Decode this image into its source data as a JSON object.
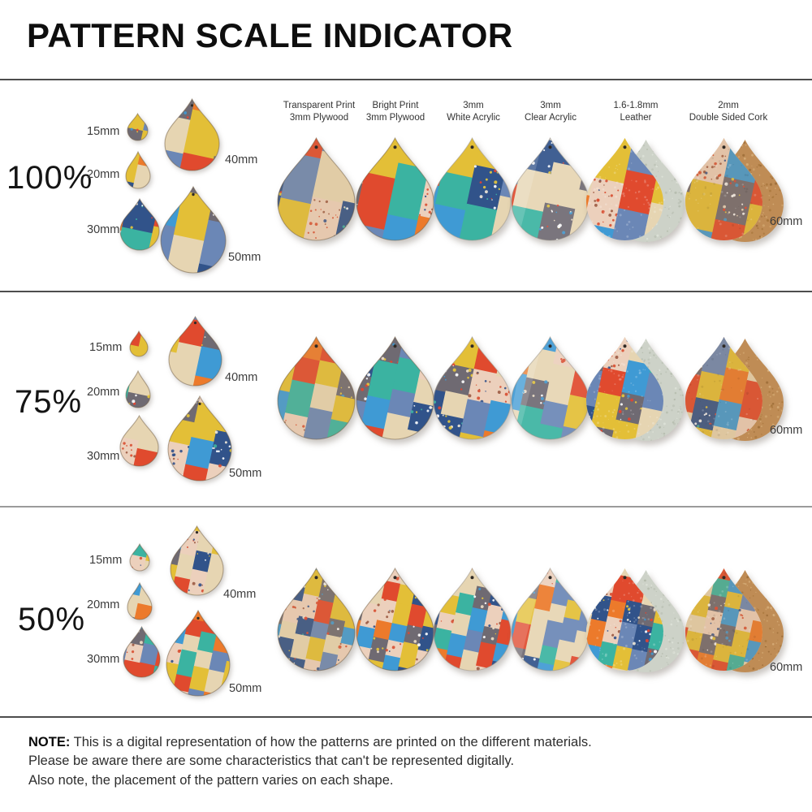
{
  "title": "PATTERN SCALE INDICATOR",
  "columns": [
    {
      "key": "plywood-transparent",
      "line1": "Transparent Print",
      "line2": "3mm Plywood"
    },
    {
      "key": "plywood-bright",
      "line1": "Bright Print",
      "line2": "3mm Plywood"
    },
    {
      "key": "white-acrylic",
      "line1": "3mm",
      "line2": "White Acrylic"
    },
    {
      "key": "clear-acrylic",
      "line1": "3mm",
      "line2": "Clear Acrylic"
    },
    {
      "key": "leather",
      "line1": "1.6-1.8mm",
      "line2": "Leather"
    },
    {
      "key": "cork",
      "line1": "2mm",
      "line2": "Double Sided Cork"
    }
  ],
  "rows": [
    {
      "scale_label": "100%",
      "scale_value": 1.0,
      "sizes": [
        "15mm",
        "20mm",
        "30mm",
        "40mm",
        "50mm"
      ],
      "right_label": "60mm"
    },
    {
      "scale_label": "75%",
      "scale_value": 0.75,
      "sizes": [
        "15mm",
        "20mm",
        "30mm",
        "40mm",
        "50mm"
      ],
      "right_label": "60mm"
    },
    {
      "scale_label": "50%",
      "scale_value": 0.5,
      "sizes": [
        "15mm",
        "20mm",
        "30mm",
        "40mm",
        "50mm"
      ],
      "right_label": "60mm"
    }
  ],
  "note": {
    "label": "NOTE:",
    "line1": "This is a digital representation of how the patterns are printed on the different materials.",
    "line2": "Please be aware there are some characteristics that can't be represented digitally.",
    "line3": "Also note, the placement of the pattern varies on each shape."
  },
  "palette": {
    "yellow": "#e3bf37",
    "navy_speckle": "#31538a",
    "cream": "#e6d5b2",
    "red": "#e04a2e",
    "speckle_pink": "#ecd0bc",
    "sky_blue": "#3f9ad4",
    "teal": "#3bb3a1",
    "orange": "#ec7a2b",
    "gray_terrazzo": "#6f6a72",
    "steel_blue": "#6b87b6",
    "leather_back": "#cdd2c8",
    "cork": "#bf8c55",
    "plywood_edge": "#6f5b41"
  }
}
